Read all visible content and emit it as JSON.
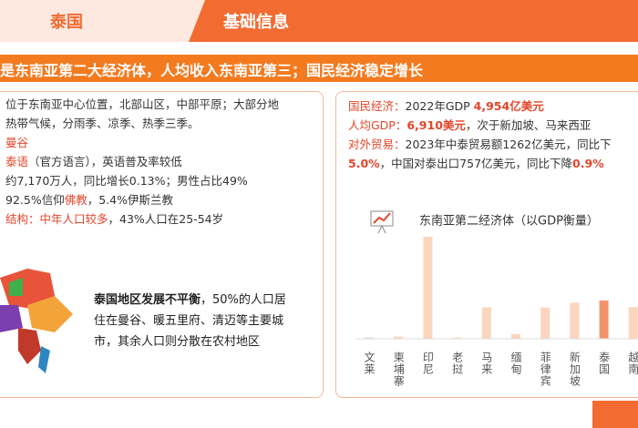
{
  "header": {
    "country": "泰国",
    "section": "基础信息"
  },
  "banner": "是东南亚第二大经济体，人均收入东南亚第三；国民经济稳定增长",
  "left_panel": {
    "lines": [
      [
        {
          "text": "位于东南亚中心位置，北部山区，中部平原；大部分地",
          "style": "plain"
        }
      ],
      [
        {
          "text": "热带气候，分雨季、凉季、热季三季。",
          "style": "plain"
        }
      ],
      [
        {
          "text": "曼谷",
          "style": "red"
        }
      ],
      [
        {
          "text": "泰语",
          "style": "red"
        },
        {
          "text": "（官方语言），英语普及率较低",
          "style": "plain"
        }
      ],
      [
        {
          "text": "约7,170万人，同比增长0.13%；男性占比49%",
          "style": "plain"
        }
      ],
      [
        {
          "text": "92.5%信仰",
          "style": "plain"
        },
        {
          "text": "佛教",
          "style": "red"
        },
        {
          "text": "，5.4%伊斯兰教",
          "style": "plain"
        }
      ],
      [
        {
          "text": "结构：中年人口较多",
          "style": "red"
        },
        {
          "text": "，43%人口在25-54岁",
          "style": "plain"
        }
      ]
    ],
    "note": [
      {
        "text": "泰国地区发展不平衡",
        "style": "bold"
      },
      {
        "text": "，50%的人口居住在曼谷、暖五里府、清迈等主要城市，其余人口则分散在农村地区",
        "style": "plain"
      }
    ]
  },
  "right_panel": {
    "lines": [
      [
        {
          "text": "国民经济：",
          "style": "red"
        },
        {
          "text": "2022年GDP ",
          "style": "plain"
        },
        {
          "text": "4,954亿美元",
          "style": "redbold"
        }
      ],
      [
        {
          "text": "人均GDP：",
          "style": "red"
        },
        {
          "text": "6,910美元",
          "style": "redbold"
        },
        {
          "text": "，次于新加坡、马来西亚",
          "style": "plain"
        }
      ],
      [
        {
          "text": "对外贸易：",
          "style": "red"
        },
        {
          "text": "2023年中泰贸易额1262亿美元，同比下",
          "style": "plain"
        }
      ],
      [
        {
          "text": "5.0%",
          "style": "redbold"
        },
        {
          "text": "，中国对泰出口757亿美元，同比下降",
          "style": "plain"
        },
        {
          "text": "0.9%",
          "style": "redbold"
        }
      ]
    ]
  },
  "chart_data": {
    "type": "bar",
    "title": "东南亚第二经济体（以GDP衡量）",
    "categories": [
      "文莱",
      "柬埔寨",
      "印尼",
      "老挝",
      "马来",
      "缅甸",
      "菲律宾",
      "新加坡",
      "泰国",
      "越南"
    ],
    "values": [
      17,
      30,
      1319,
      15,
      407,
      59,
      404,
      467,
      495,
      409
    ],
    "colors": [
      "#fbd5bd",
      "#fbd5bd",
      "#fbd5bd",
      "#fbd5bd",
      "#fbd5bd",
      "#fbd5bd",
      "#fbd5bd",
      "#fbd5bd",
      "#f3936a",
      "#fbd5bd"
    ]
  }
}
